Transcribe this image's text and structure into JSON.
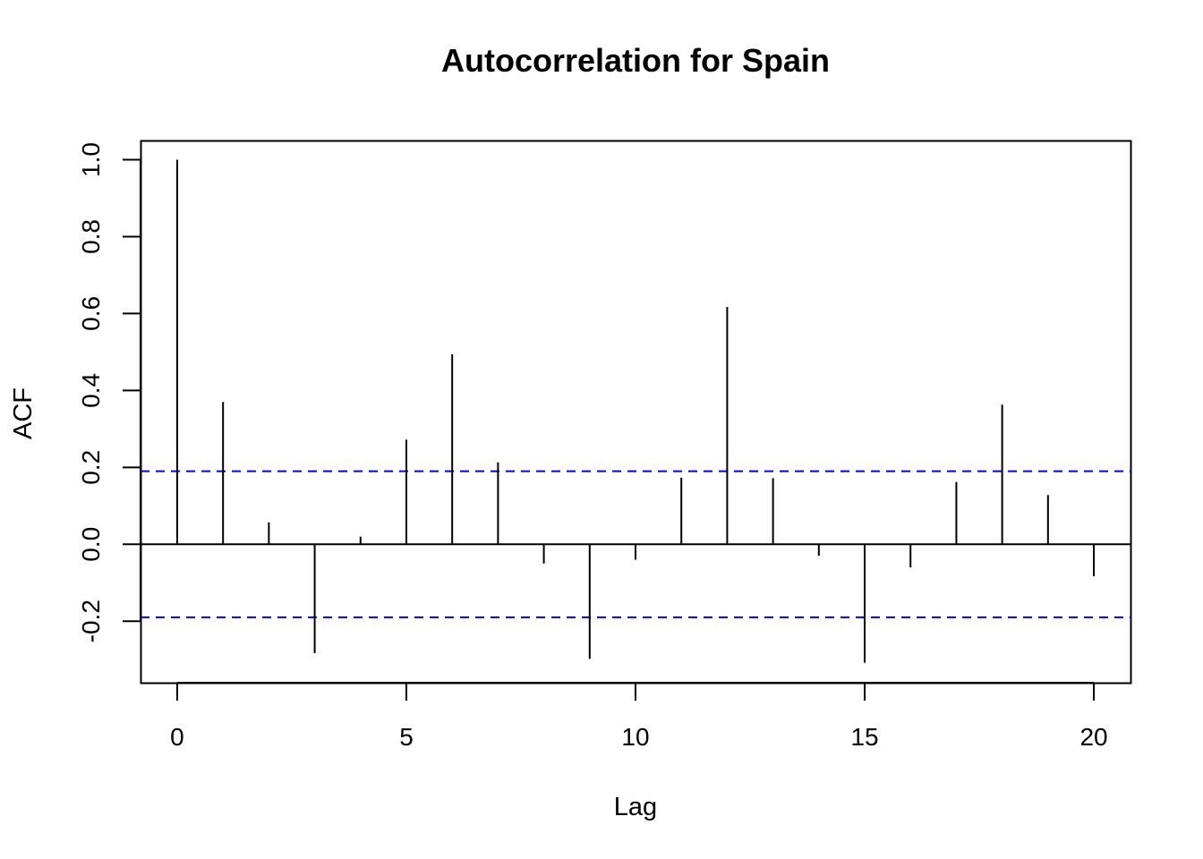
{
  "chart_data": {
    "type": "bar",
    "title": "Autocorrelation for Spain",
    "xlabel": "Lag",
    "ylabel": "ACF",
    "x": [
      0,
      1,
      2,
      3,
      4,
      5,
      6,
      7,
      8,
      9,
      10,
      11,
      12,
      13,
      14,
      15,
      16,
      17,
      18,
      19,
      20
    ],
    "values": [
      1.0,
      0.37,
      0.057,
      -0.283,
      0.02,
      0.272,
      0.494,
      0.213,
      -0.05,
      -0.298,
      -0.04,
      0.173,
      0.617,
      0.172,
      -0.03,
      -0.308,
      -0.06,
      0.162,
      0.363,
      0.128,
      -0.083
    ],
    "confidence_limit": 0.19,
    "xlim": [
      -0.8,
      20.8
    ],
    "ylim": [
      -0.36,
      1.05
    ],
    "xticks": [
      0,
      5,
      10,
      15,
      20
    ],
    "yticks": [
      -0.2,
      0.0,
      0.2,
      0.4,
      0.6,
      0.8,
      1.0
    ],
    "xtick_labels": [
      "0",
      "5",
      "10",
      "15",
      "20"
    ],
    "ytick_labels": [
      "-0.2",
      "0.0",
      "0.2",
      "0.4",
      "0.6",
      "0.8",
      "1.0"
    ],
    "colors": {
      "bars": "#000000",
      "confidence": "#0000ff",
      "zero_line": "#000000"
    },
    "grid": false,
    "legend": "none"
  }
}
